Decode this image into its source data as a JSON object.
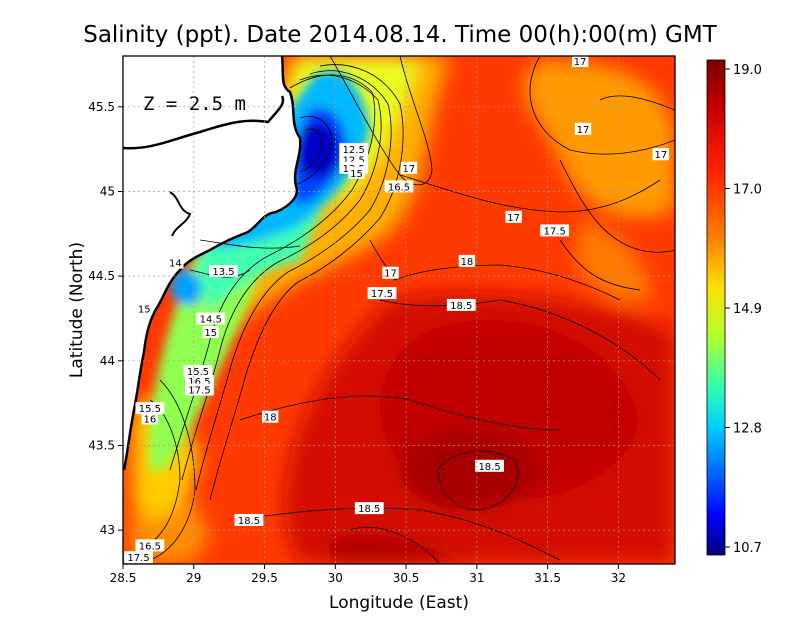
{
  "chart_data": {
    "type": "heatmap",
    "title": "Salinity (ppt). Date 2014.08.14. Time 00(h):00(m) GMT",
    "xlabel": "Longitude (East)",
    "ylabel": "Latitude (North)",
    "xlim": [
      28.5,
      32.4
    ],
    "ylim": [
      42.8,
      45.8
    ],
    "x_ticks": [
      "28.5",
      "29",
      "29.5",
      "30",
      "30.5",
      "31",
      "31.5",
      "32"
    ],
    "y_ticks": [
      "43",
      "43.5",
      "44",
      "44.5",
      "45",
      "45.5"
    ],
    "annotation": "Z = 2.5 m",
    "grid": true,
    "colorbar": {
      "placement": "right",
      "range": [
        10.7,
        19.0
      ],
      "tick_labels": [
        "19.0",
        "17.0",
        "14.9",
        "12.8",
        "10.7"
      ],
      "colors": [
        "#00007a",
        "#0000ff",
        "#0070ff",
        "#00e0ff",
        "#30ffb0",
        "#90ff50",
        "#e8ff00",
        "#ffc000",
        "#ff6000",
        "#ff2000",
        "#c80000",
        "#7a0000"
      ]
    },
    "land_color": "#ffffff",
    "coastline_color": "#000000",
    "contour_labels": [
      {
        "text": "17",
        "lon": 31.73,
        "lat": 45.77
      },
      {
        "text": "17",
        "lon": 31.75,
        "lat": 45.37
      },
      {
        "text": "17",
        "lon": 32.3,
        "lat": 45.22
      },
      {
        "text": "12.5",
        "lon": 30.13,
        "lat": 45.25
      },
      {
        "text": "12.5",
        "lon": 30.13,
        "lat": 45.19
      },
      {
        "text": "13.5",
        "lon": 30.13,
        "lat": 45.14
      },
      {
        "text": "15",
        "lon": 30.15,
        "lat": 45.11
      },
      {
        "text": "17",
        "lon": 30.52,
        "lat": 45.14
      },
      {
        "text": "16.5",
        "lon": 30.45,
        "lat": 45.03
      },
      {
        "text": "17",
        "lon": 31.26,
        "lat": 44.85
      },
      {
        "text": "17.5",
        "lon": 31.55,
        "lat": 44.77
      },
      {
        "text": "18",
        "lon": 30.93,
        "lat": 44.59
      },
      {
        "text": "17",
        "lon": 30.39,
        "lat": 44.52
      },
      {
        "text": "17.5",
        "lon": 30.33,
        "lat": 44.4
      },
      {
        "text": "18.5",
        "lon": 30.89,
        "lat": 44.33
      },
      {
        "text": "14",
        "lon": 28.87,
        "lat": 44.58
      },
      {
        "text": "13.5",
        "lon": 29.21,
        "lat": 44.53
      },
      {
        "text": "15",
        "lon": 28.65,
        "lat": 44.31
      },
      {
        "text": "14.5",
        "lon": 29.12,
        "lat": 44.25
      },
      {
        "text": "15",
        "lon": 29.12,
        "lat": 44.17
      },
      {
        "text": "15.5",
        "lon": 29.03,
        "lat": 43.94
      },
      {
        "text": "16.5",
        "lon": 29.04,
        "lat": 43.88
      },
      {
        "text": "17.5",
        "lon": 29.04,
        "lat": 43.83
      },
      {
        "text": "15.5",
        "lon": 28.69,
        "lat": 43.72
      },
      {
        "text": "16",
        "lon": 28.69,
        "lat": 43.66
      },
      {
        "text": "18",
        "lon": 29.54,
        "lat": 43.67
      },
      {
        "text": "18.5",
        "lon": 31.09,
        "lat": 43.38
      },
      {
        "text": "18.5",
        "lon": 29.39,
        "lat": 43.06
      },
      {
        "text": "18.5",
        "lon": 30.24,
        "lat": 43.13
      },
      {
        "text": "16.5",
        "lon": 28.69,
        "lat": 42.91
      },
      {
        "text": "17.5",
        "lon": 28.61,
        "lat": 42.84
      }
    ]
  }
}
